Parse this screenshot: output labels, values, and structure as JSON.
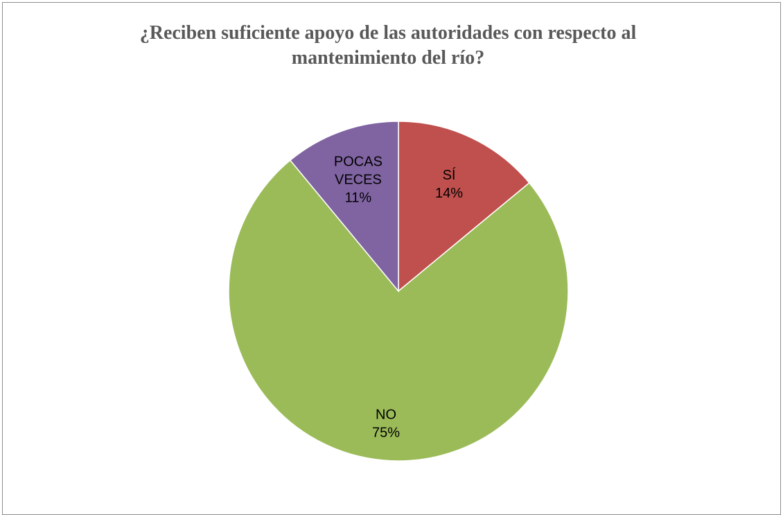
{
  "chart_data": {
    "type": "pie",
    "title_lines": [
      "¿Reciben suficiente apoyo de las autoridades con respecto al",
      "mantenimiento del río?"
    ],
    "slices": [
      {
        "label": "SÍ",
        "label_lines": [
          "SÍ"
        ],
        "value": 14,
        "value_label": "14%",
        "color": "#C0504D"
      },
      {
        "label": "NO",
        "label_lines": [
          "NO"
        ],
        "value": 75,
        "value_label": "75%",
        "color": "#9BBB59"
      },
      {
        "label": "POCAS VECES",
        "label_lines": [
          "POCAS",
          "VECES"
        ],
        "value": 11,
        "value_label": "11%",
        "color": "#8064A2"
      }
    ],
    "start_angle_deg": 0,
    "direction": "clockwise",
    "legend": "none"
  }
}
